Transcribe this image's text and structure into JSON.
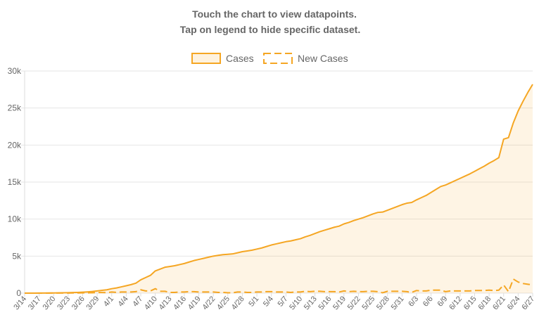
{
  "chart_data": {
    "type": "line",
    "title": "Touch the chart to view datapoints.",
    "subtitle": "Tap on legend to hide specific dataset.",
    "categories": [
      "3/14",
      null,
      null,
      "3/17",
      null,
      null,
      "3/20",
      null,
      null,
      "3/23",
      null,
      null,
      "3/26",
      null,
      null,
      "3/29",
      null,
      null,
      "4/1",
      null,
      null,
      "4/4",
      null,
      null,
      "4/7",
      null,
      null,
      "4/10",
      null,
      null,
      "4/13",
      null,
      null,
      "4/16",
      null,
      null,
      "4/19",
      null,
      null,
      "4/22",
      null,
      null,
      "4/25",
      null,
      null,
      "4/28",
      null,
      null,
      "5/1",
      null,
      null,
      "5/4",
      null,
      null,
      "5/7",
      null,
      null,
      "5/10",
      null,
      null,
      "5/13",
      null,
      null,
      "5/16",
      null,
      null,
      "5/19",
      null,
      null,
      "5/22",
      null,
      null,
      "5/25",
      null,
      null,
      "5/28",
      null,
      null,
      "5/31",
      null,
      null,
      "6/3",
      null,
      null,
      "6/6",
      null,
      null,
      "6/9",
      null,
      null,
      "6/12",
      null,
      null,
      "6/15",
      null,
      null,
      "6/18",
      null,
      null,
      "6/21",
      null,
      null,
      "6/24",
      null,
      null,
      "6/27"
    ],
    "series": [
      {
        "name": "Cases",
        "color": "#f5a623",
        "dash": false,
        "fill": true,
        "values": [
          2,
          3,
          5,
          8,
          12,
          18,
          25,
          35,
          45,
          60,
          80,
          100,
          130,
          170,
          220,
          300,
          380,
          450,
          600,
          700,
          850,
          1000,
          1150,
          1350,
          1800,
          2100,
          2400,
          3000,
          3250,
          3500,
          3600,
          3700,
          3850,
          4000,
          4200,
          4400,
          4550,
          4700,
          4850,
          5000,
          5100,
          5200,
          5250,
          5300,
          5450,
          5600,
          5700,
          5800,
          5950,
          6100,
          6300,
          6500,
          6650,
          6800,
          6950,
          7050,
          7200,
          7350,
          7600,
          7800,
          8050,
          8300,
          8500,
          8700,
          8900,
          9050,
          9350,
          9550,
          9800,
          10000,
          10200,
          10450,
          10700,
          10900,
          10950,
          11200,
          11450,
          11700,
          11950,
          12150,
          12250,
          12600,
          12900,
          13200,
          13600,
          14000,
          14400,
          14600,
          14900,
          15200,
          15500,
          15800,
          16100,
          16450,
          16800,
          17150,
          17550,
          17900,
          18300,
          20800,
          21000,
          23000,
          24600,
          25900,
          27100,
          28200
        ]
      },
      {
        "name": "New Cases",
        "color": "#f5a623",
        "dash": true,
        "fill": false,
        "values": [
          2,
          1,
          2,
          3,
          4,
          6,
          7,
          10,
          10,
          15,
          20,
          20,
          30,
          40,
          50,
          80,
          80,
          70,
          150,
          100,
          150,
          150,
          150,
          200,
          450,
          300,
          300,
          600,
          250,
          250,
          100,
          100,
          150,
          150,
          200,
          200,
          150,
          150,
          150,
          150,
          100,
          100,
          50,
          50,
          150,
          150,
          100,
          100,
          150,
          150,
          200,
          200,
          150,
          150,
          150,
          100,
          150,
          150,
          250,
          200,
          250,
          250,
          200,
          200,
          200,
          150,
          300,
          200,
          250,
          200,
          200,
          250,
          250,
          200,
          50,
          250,
          250,
          250,
          250,
          200,
          100,
          350,
          300,
          300,
          400,
          400,
          400,
          200,
          300,
          300,
          300,
          300,
          300,
          350,
          350,
          350,
          400,
          350,
          400,
          1100,
          200,
          1900,
          1500,
          1300,
          1200,
          1100
        ]
      }
    ],
    "ylim": [
      0,
      30000
    ],
    "yticks": [
      0,
      {
        "value": 5000,
        "label": "5k"
      },
      {
        "value": 10000,
        "label": "10k"
      },
      {
        "value": 15000,
        "label": "15k"
      },
      {
        "value": 20000,
        "label": "20k"
      },
      {
        "value": 25000,
        "label": "25k"
      },
      {
        "value": 30000,
        "label": "30k"
      }
    ],
    "grid": true,
    "legend": "top"
  }
}
